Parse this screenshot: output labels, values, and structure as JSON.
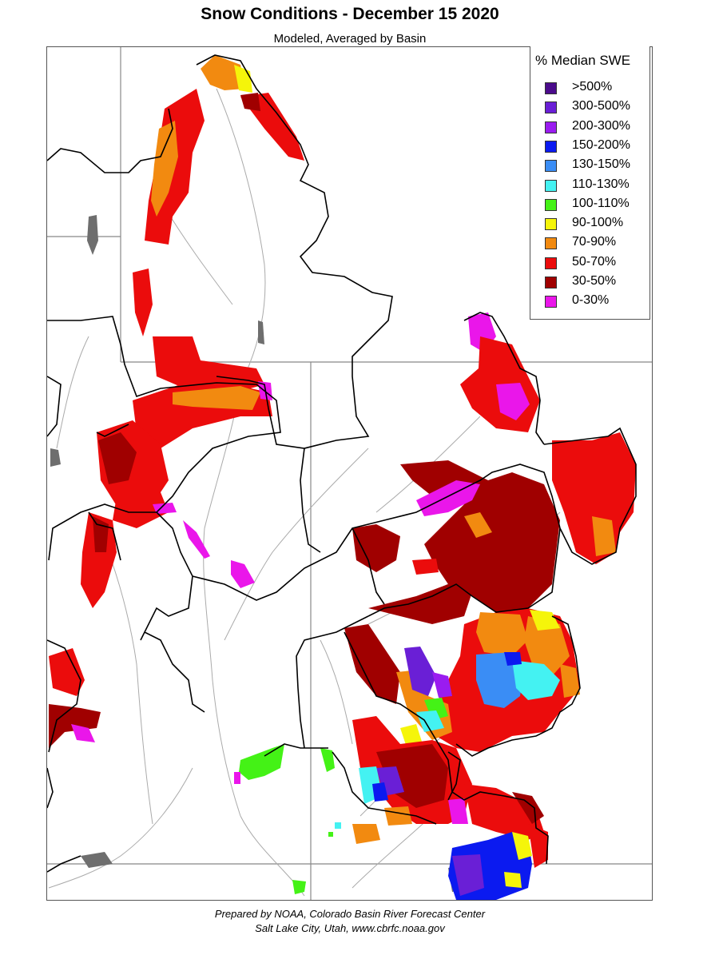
{
  "header": {
    "title": "Snow Conditions - December 15 2020",
    "subtitle": "Modeled, Averaged by Basin"
  },
  "legend": {
    "title": "% Median SWE",
    "items": [
      {
        "label": ">500%",
        "color": "#4b0b8c"
      },
      {
        "label": "300-500%",
        "color": "#6a1fd6"
      },
      {
        "label": "200-300%",
        "color": "#9a1cf0"
      },
      {
        "label": "150-200%",
        "color": "#0b1af0"
      },
      {
        "label": "130-150%",
        "color": "#3a8df5"
      },
      {
        "label": "110-130%",
        "color": "#44f2f2"
      },
      {
        "label": "100-110%",
        "color": "#44f216"
      },
      {
        "label": "90-100%",
        "color": "#f5f50a"
      },
      {
        "label": "70-90%",
        "color": "#f28a10"
      },
      {
        "label": "50-70%",
        "color": "#eb0c0c"
      },
      {
        "label": "30-50%",
        "color": "#a00000"
      },
      {
        "label": "0-30%",
        "color": "#ea16ea"
      }
    ]
  },
  "footer": {
    "line1": "Prepared by NOAA, Colorado Basin River Forecast Center",
    "line2": "Salt Lake City, Utah, www.cbrfc.noaa.gov"
  },
  "map_colors": {
    "basin_outline": "#000000",
    "state_line": "#888888",
    "river": "#aaaaaa",
    "lake": "#6e6e6e"
  }
}
